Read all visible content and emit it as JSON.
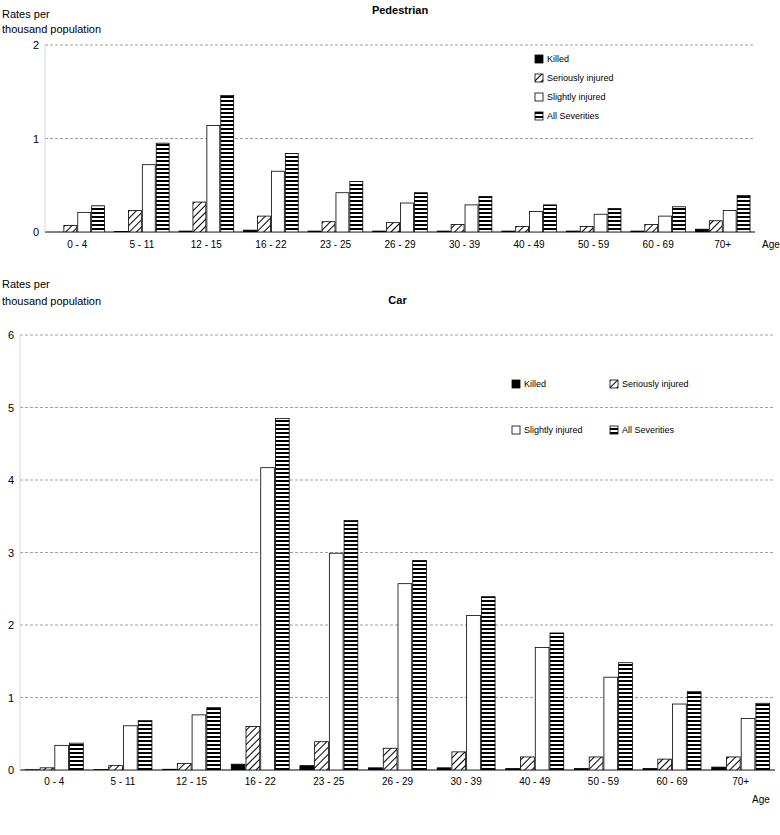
{
  "chart_data": [
    {
      "type": "bar",
      "title": "Pedestrian",
      "y_label": [
        "Rates per",
        "thousand population"
      ],
      "x_label": "Age",
      "categories": [
        "0 - 4",
        "5  - 11",
        "12 - 15",
        "16 - 22",
        "23 - 25",
        "26 - 29",
        "30 - 39",
        "40 - 49",
        "50 - 59",
        "60 - 69",
        "70+"
      ],
      "series": [
        {
          "name": "Killed",
          "color": "#000000",
          "values": [
            0,
            0.005,
            0.01,
            0.02,
            0.01,
            0.01,
            0.01,
            0.01,
            0.01,
            0.01,
            0.03
          ]
        },
        {
          "name": "Seriously injured",
          "color": "#000000",
          "values": [
            0.07,
            0.23,
            0.32,
            0.17,
            0.11,
            0.1,
            0.08,
            0.06,
            0.06,
            0.08,
            0.12
          ]
        },
        {
          "name": "Slightly injured",
          "color": "#ffffff",
          "values": [
            0.21,
            0.72,
            1.14,
            0.65,
            0.42,
            0.31,
            0.29,
            0.22,
            0.19,
            0.17,
            0.23
          ]
        },
        {
          "name": "All Severities",
          "color": "#000000",
          "values": [
            0.28,
            0.95,
            1.46,
            0.84,
            0.54,
            0.42,
            0.38,
            0.29,
            0.25,
            0.27,
            0.39
          ]
        }
      ],
      "ylim": [
        0,
        2
      ],
      "yticks": [
        0,
        1,
        2
      ],
      "grid": true,
      "legend": "upper right"
    },
    {
      "type": "bar",
      "title": "Car",
      "y_label": [
        "Rates per",
        "thousand population"
      ],
      "x_label": "Age",
      "categories": [
        "0 - 4",
        "5  - 11",
        "12 - 15",
        "16 - 22",
        "23 - 25",
        "26 - 29",
        "30 - 39",
        "40 - 49",
        "50 - 59",
        "60 - 69",
        "70+"
      ],
      "series": [
        {
          "name": "Killed",
          "color": "#000000",
          "values": [
            0.003,
            0.005,
            0.01,
            0.08,
            0.06,
            0.03,
            0.03,
            0.02,
            0.02,
            0.02,
            0.04
          ]
        },
        {
          "name": "Seriously injured",
          "color": "#000000",
          "values": [
            0.03,
            0.06,
            0.09,
            0.6,
            0.39,
            0.3,
            0.25,
            0.18,
            0.18,
            0.15,
            0.18
          ]
        },
        {
          "name": "Slightly injured",
          "color": "#ffffff",
          "values": [
            0.34,
            0.61,
            0.76,
            4.17,
            2.99,
            2.57,
            2.13,
            1.69,
            1.28,
            0.91,
            0.71
          ]
        },
        {
          "name": "All Severities",
          "color": "#000000",
          "values": [
            0.37,
            0.68,
            0.86,
            4.85,
            3.44,
            2.89,
            2.39,
            1.89,
            1.48,
            1.08,
            0.92
          ]
        }
      ],
      "ylim": [
        0,
        6
      ],
      "yticks": [
        0,
        1,
        2,
        3,
        4,
        5,
        6
      ],
      "grid": true,
      "legend": "upper right"
    }
  ]
}
